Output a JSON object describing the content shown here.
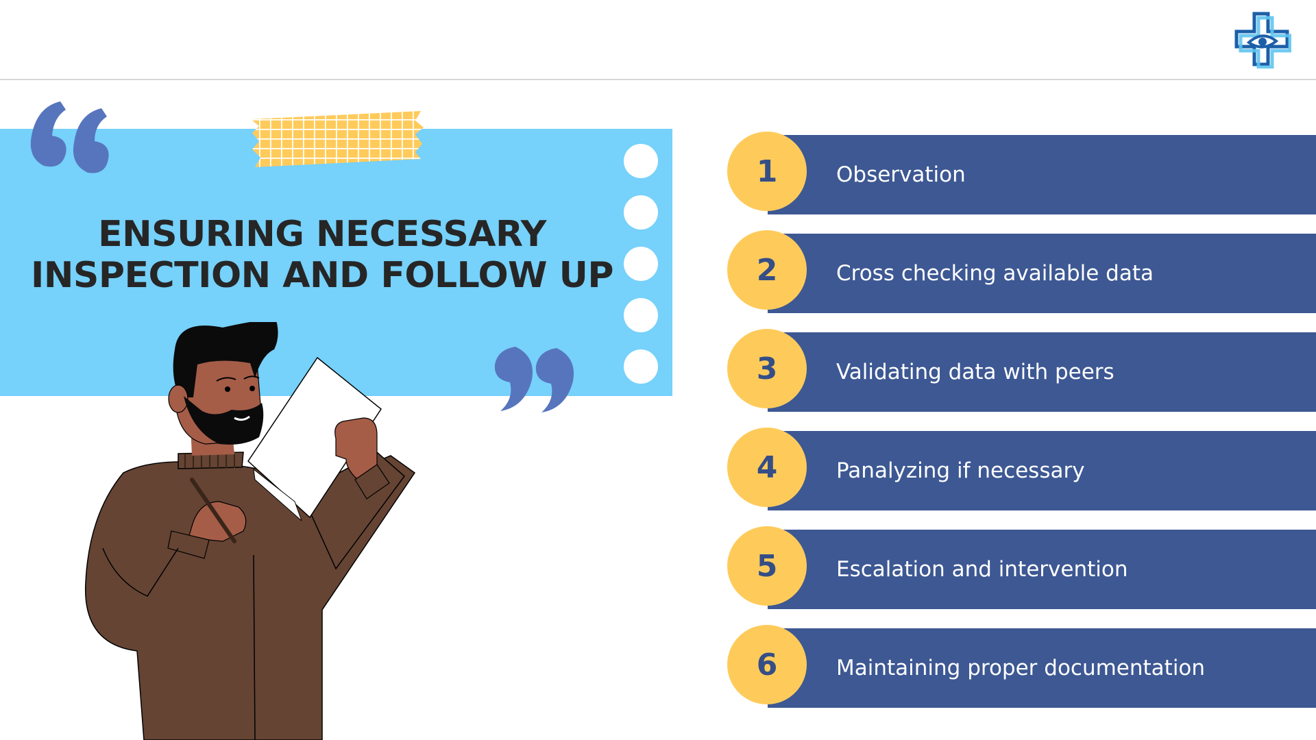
{
  "slide": {
    "title_line1": "ENSURING NECESSARY",
    "title_line2": "INSPECTION AND FOLLOW UP"
  },
  "colors": {
    "panel": "#76d1fb",
    "bar": "#3d5893",
    "circle": "#fecb5b",
    "number": "#354e86",
    "quote": "#5775bd"
  },
  "icons": {
    "logo": "medical-cross-eye-icon",
    "quote_open": "quote-open-icon",
    "quote_close": "quote-close-icon"
  },
  "steps": [
    {
      "number": "1",
      "label": "Observation"
    },
    {
      "number": "2",
      "label": "Cross checking available data"
    },
    {
      "number": "3",
      "label": "Validating data with peers"
    },
    {
      "number": "4",
      "label": "Panalyzing if necessary"
    },
    {
      "number": "5",
      "label": "Escalation and intervention"
    },
    {
      "number": "6",
      "label": "Maintaining proper documentation"
    }
  ]
}
